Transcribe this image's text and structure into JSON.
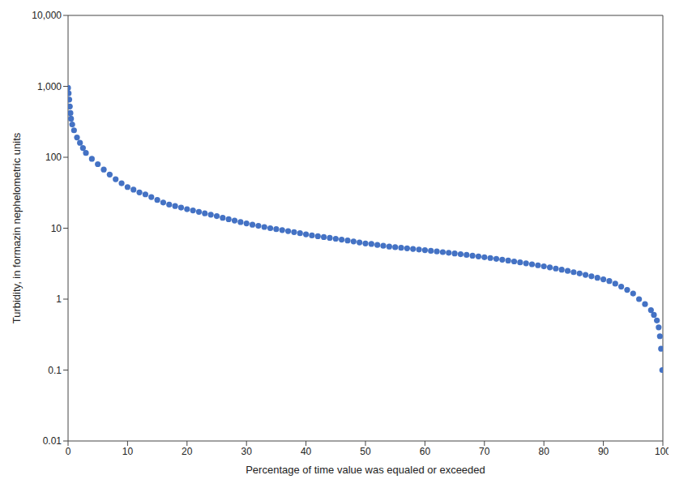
{
  "chart_data": {
    "type": "scatter",
    "x_label": "Percentage of time value was equaled or exceeded",
    "y_label": "Turbidity, in formazin nephelometric units",
    "x": [
      0,
      0.1,
      0.2,
      0.3,
      0.4,
      0.5,
      0.7,
      1,
      1.5,
      2,
      2.5,
      3,
      4,
      5,
      6,
      7,
      8,
      9,
      10,
      11,
      12,
      13,
      14,
      15,
      16,
      17,
      18,
      19,
      20,
      21,
      22,
      23,
      24,
      25,
      26,
      27,
      28,
      29,
      30,
      31,
      32,
      33,
      34,
      35,
      36,
      37,
      38,
      39,
      40,
      41,
      42,
      43,
      44,
      45,
      46,
      47,
      48,
      49,
      50,
      51,
      52,
      53,
      54,
      55,
      56,
      57,
      58,
      59,
      60,
      61,
      62,
      63,
      64,
      65,
      66,
      67,
      68,
      69,
      70,
      71,
      72,
      73,
      74,
      75,
      76,
      77,
      78,
      79,
      80,
      81,
      82,
      83,
      84,
      85,
      86,
      87,
      88,
      89,
      90,
      91,
      92,
      93,
      94,
      95,
      96,
      97,
      98,
      98.5,
      99,
      99.3,
      99.5,
      99.7,
      99.9
    ],
    "values": [
      950,
      800,
      650,
      520,
      420,
      350,
      290,
      240,
      190,
      160,
      135,
      115,
      95,
      80,
      67,
      57,
      49,
      43,
      38,
      35,
      32,
      30,
      27.5,
      25,
      23,
      21.5,
      20.5,
      19.5,
      18.5,
      17.8,
      17,
      16.2,
      15.5,
      14.8,
      14,
      13.4,
      12.8,
      12.2,
      11.7,
      11.2,
      10.8,
      10.4,
      10,
      9.7,
      9.4,
      9.1,
      8.8,
      8.5,
      8.2,
      7.9,
      7.7,
      7.5,
      7.3,
      7.1,
      6.9,
      6.7,
      6.5,
      6.3,
      6.1,
      6,
      5.8,
      5.65,
      5.5,
      5.4,
      5.3,
      5.2,
      5.1,
      5,
      4.9,
      4.8,
      4.7,
      4.6,
      4.5,
      4.4,
      4.3,
      4.2,
      4.1,
      4,
      3.9,
      3.8,
      3.7,
      3.6,
      3.5,
      3.4,
      3.3,
      3.2,
      3.1,
      3,
      2.9,
      2.8,
      2.7,
      2.6,
      2.5,
      2.4,
      2.3,
      2.2,
      2.1,
      2,
      1.9,
      1.8,
      1.65,
      1.5,
      1.35,
      1.2,
      1,
      0.85,
      0.7,
      0.6,
      0.5,
      0.4,
      0.3,
      0.2,
      0.1
    ],
    "color": "#4472c4",
    "marker": "circle",
    "log": "y",
    "grid": false,
    "xlim": [
      0,
      100
    ],
    "xticks": [
      0,
      10,
      20,
      30,
      40,
      50,
      60,
      70,
      80,
      90,
      100
    ],
    "ylim": [
      0.01,
      10000
    ],
    "yticks": [
      0.01,
      0.1,
      1,
      10,
      100,
      {
        "value": 1000,
        "label": "1,000"
      },
      {
        "value": 10000,
        "label": "10,000"
      }
    ]
  }
}
